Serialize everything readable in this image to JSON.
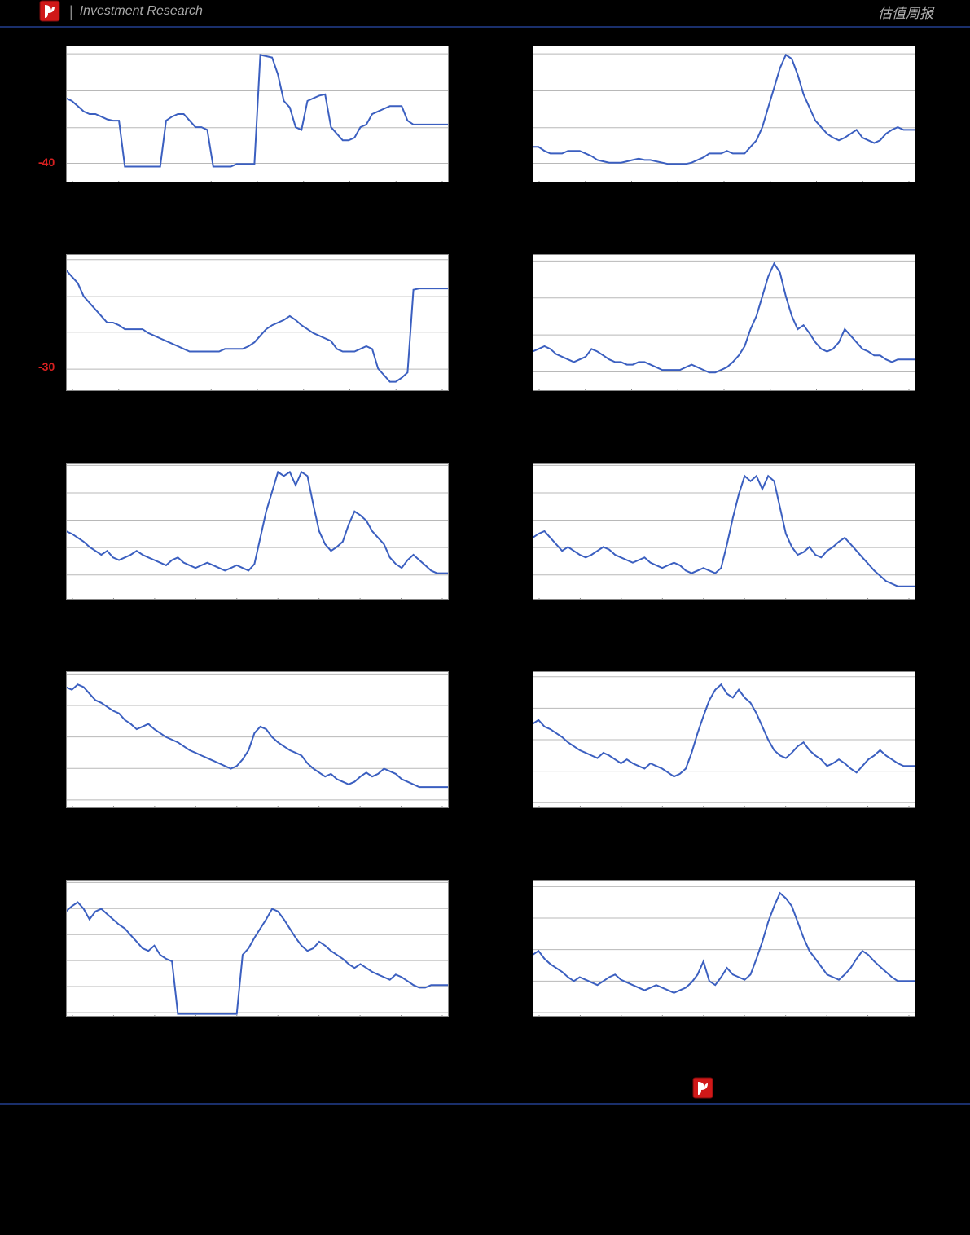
{
  "header": {
    "left_text": "Investment Research",
    "right_text": "估值周报"
  },
  "chart_style": {
    "bg": "#ffffff",
    "grid": "#b8b8b8",
    "axis": "#888888",
    "line": "#3b5fc0",
    "line_width": 2
  },
  "charts": [
    {
      "id": "r1c1",
      "y_label": "-40",
      "y_label_top_pct": 85,
      "xticks": 9,
      "gridlines": [
        0.06,
        0.33,
        0.6,
        0.86
      ],
      "data": [
        62,
        60,
        56,
        52,
        50,
        50,
        48,
        46,
        45,
        45,
        10,
        10,
        10,
        10,
        10,
        10,
        10,
        45,
        48,
        50,
        50,
        45,
        40,
        40,
        38,
        10,
        10,
        10,
        10,
        12,
        12,
        12,
        12,
        95,
        94,
        93,
        80,
        60,
        55,
        40,
        38,
        60,
        62,
        64,
        65,
        40,
        35,
        30,
        30,
        32,
        40,
        42,
        50,
        52,
        54,
        56,
        56,
        56,
        45,
        42,
        42,
        42,
        42,
        42,
        42,
        42
      ]
    },
    {
      "id": "r1c2",
      "xticks": 9,
      "gridlines": [
        0.06,
        0.33,
        0.6,
        0.86
      ],
      "data": [
        25,
        25,
        22,
        20,
        20,
        20,
        22,
        22,
        22,
        20,
        18,
        15,
        14,
        13,
        13,
        13,
        14,
        15,
        16,
        15,
        15,
        14,
        13,
        12,
        12,
        12,
        12,
        13,
        15,
        17,
        20,
        20,
        20,
        22,
        20,
        20,
        20,
        25,
        30,
        40,
        55,
        70,
        85,
        95,
        92,
        80,
        65,
        55,
        45,
        40,
        35,
        32,
        30,
        32,
        35,
        38,
        32,
        30,
        28,
        30,
        35,
        38,
        40,
        38,
        38,
        38
      ]
    },
    {
      "id": "r2c1",
      "y_label": "-30",
      "y_label_top_pct": 82,
      "xticks": 9,
      "gridlines": [
        0.04,
        0.31,
        0.57,
        0.84
      ],
      "data": [
        90,
        85,
        80,
        70,
        65,
        60,
        55,
        50,
        50,
        48,
        45,
        45,
        45,
        45,
        42,
        40,
        38,
        36,
        34,
        32,
        30,
        28,
        28,
        28,
        28,
        28,
        28,
        30,
        30,
        30,
        30,
        32,
        35,
        40,
        45,
        48,
        50,
        52,
        55,
        52,
        48,
        45,
        42,
        40,
        38,
        36,
        30,
        28,
        28,
        28,
        30,
        32,
        30,
        15,
        10,
        5,
        5,
        8,
        12,
        75,
        76,
        76,
        76,
        76,
        76,
        76
      ]
    },
    {
      "id": "r2c2",
      "xticks": 9,
      "gridlines": [
        0.05,
        0.32,
        0.59,
        0.86
      ],
      "data": [
        28,
        30,
        32,
        30,
        26,
        24,
        22,
        20,
        22,
        24,
        30,
        28,
        25,
        22,
        20,
        20,
        18,
        18,
        20,
        20,
        18,
        16,
        14,
        14,
        14,
        14,
        16,
        18,
        16,
        14,
        12,
        12,
        14,
        16,
        20,
        25,
        32,
        45,
        55,
        70,
        85,
        95,
        88,
        70,
        55,
        45,
        48,
        42,
        35,
        30,
        28,
        30,
        35,
        45,
        40,
        35,
        30,
        28,
        25,
        25,
        22,
        20,
        22,
        22,
        22,
        22
      ]
    },
    {
      "id": "r3c1",
      "xticks": 10,
      "gridlines": [
        0.02,
        0.22,
        0.42,
        0.62,
        0.82
      ],
      "data": [
        50,
        48,
        45,
        42,
        38,
        35,
        32,
        35,
        30,
        28,
        30,
        32,
        35,
        32,
        30,
        28,
        26,
        24,
        28,
        30,
        26,
        24,
        22,
        24,
        26,
        24,
        22,
        20,
        22,
        24,
        22,
        20,
        25,
        45,
        65,
        80,
        95,
        92,
        95,
        85,
        95,
        92,
        70,
        50,
        40,
        35,
        38,
        42,
        55,
        65,
        62,
        58,
        50,
        45,
        40,
        30,
        25,
        22,
        28,
        32,
        28,
        24,
        20,
        18,
        18,
        18
      ]
    },
    {
      "id": "r3c2",
      "xticks": 10,
      "gridlines": [
        0.02,
        0.22,
        0.42,
        0.62,
        0.82
      ],
      "data": [
        45,
        48,
        50,
        45,
        40,
        35,
        38,
        35,
        32,
        30,
        32,
        35,
        38,
        36,
        32,
        30,
        28,
        26,
        28,
        30,
        26,
        24,
        22,
        24,
        26,
        24,
        20,
        18,
        20,
        22,
        20,
        18,
        22,
        40,
        60,
        78,
        92,
        88,
        92,
        82,
        92,
        88,
        68,
        48,
        38,
        32,
        34,
        38,
        32,
        30,
        35,
        38,
        42,
        45,
        40,
        35,
        30,
        25,
        20,
        16,
        12,
        10,
        8,
        8,
        8,
        8
      ]
    },
    {
      "id": "r4c1",
      "xticks": 10,
      "gridlines": [
        0.02,
        0.25,
        0.48,
        0.71,
        0.94
      ],
      "data": [
        90,
        88,
        92,
        90,
        85,
        80,
        78,
        75,
        72,
        70,
        65,
        62,
        58,
        60,
        62,
        58,
        55,
        52,
        50,
        48,
        45,
        42,
        40,
        38,
        36,
        34,
        32,
        30,
        28,
        30,
        35,
        42,
        55,
        60,
        58,
        52,
        48,
        45,
        42,
        40,
        38,
        32,
        28,
        25,
        22,
        24,
        20,
        18,
        16,
        18,
        22,
        25,
        22,
        24,
        28,
        26,
        24,
        20,
        18,
        16,
        14,
        14,
        14,
        14,
        14,
        14
      ]
    },
    {
      "id": "r4c2",
      "xticks": 10,
      "gridlines": [
        0.04,
        0.27,
        0.5,
        0.73,
        0.96
      ],
      "data": [
        62,
        65,
        60,
        58,
        55,
        52,
        48,
        45,
        42,
        40,
        38,
        36,
        40,
        38,
        35,
        32,
        35,
        32,
        30,
        28,
        32,
        30,
        28,
        25,
        22,
        24,
        28,
        40,
        55,
        68,
        80,
        88,
        92,
        85,
        82,
        88,
        82,
        78,
        70,
        60,
        50,
        42,
        38,
        36,
        40,
        45,
        48,
        42,
        38,
        35,
        30,
        32,
        35,
        32,
        28,
        25,
        30,
        35,
        38,
        42,
        38,
        35,
        32,
        30,
        30,
        30
      ]
    },
    {
      "id": "r5c1",
      "xticks": 10,
      "gridlines": [
        0.02,
        0.21,
        0.4,
        0.59,
        0.78,
        0.97
      ],
      "data": [
        78,
        82,
        85,
        80,
        72,
        78,
        80,
        76,
        72,
        68,
        65,
        60,
        55,
        50,
        48,
        52,
        45,
        42,
        40,
        0,
        0,
        0,
        0,
        0,
        0,
        0,
        0,
        0,
        0,
        0,
        45,
        50,
        58,
        65,
        72,
        80,
        78,
        72,
        65,
        58,
        52,
        48,
        50,
        55,
        52,
        48,
        45,
        42,
        38,
        35,
        38,
        35,
        32,
        30,
        28,
        26,
        30,
        28,
        25,
        22,
        20,
        20,
        22,
        22,
        22,
        22
      ]
    },
    {
      "id": "r5c2",
      "xticks": 10,
      "gridlines": [
        0.05,
        0.28,
        0.51,
        0.74,
        0.97
      ],
      "data": [
        45,
        48,
        42,
        38,
        35,
        32,
        28,
        25,
        28,
        26,
        24,
        22,
        25,
        28,
        30,
        26,
        24,
        22,
        20,
        18,
        20,
        22,
        20,
        18,
        16,
        18,
        20,
        24,
        30,
        40,
        25,
        22,
        28,
        35,
        30,
        28,
        26,
        30,
        42,
        55,
        70,
        82,
        92,
        88,
        82,
        70,
        58,
        48,
        42,
        36,
        30,
        28,
        26,
        30,
        35,
        42,
        48,
        45,
        40,
        36,
        32,
        28,
        25,
        25,
        25,
        25
      ]
    }
  ]
}
